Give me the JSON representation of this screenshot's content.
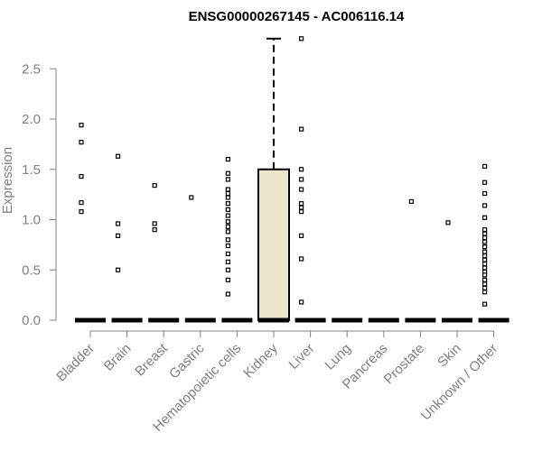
{
  "chart_data": {
    "type": "box",
    "title": "ENSG00000267145 - AC006116.14",
    "xlabel": "",
    "ylabel": "Expression",
    "ylim": [
      0,
      2.8
    ],
    "yticks": [
      "0.0",
      "0.5",
      "1.0",
      "1.5",
      "2.0",
      "2.5"
    ],
    "grid": false,
    "categories": [
      "Bladder",
      "Brain",
      "Breast",
      "Gastric",
      "Hematopoietic cells",
      "Kidney",
      "Liver",
      "Lung",
      "Pancreas",
      "Prostate",
      "Skin",
      "Unknown / Other"
    ],
    "box_color": "#ede6cc",
    "boxes": [
      {
        "category": "Bladder",
        "q1": 0,
        "median": 0,
        "q3": 0,
        "whisker_low": 0,
        "whisker_high": 0
      },
      {
        "category": "Brain",
        "q1": 0,
        "median": 0,
        "q3": 0,
        "whisker_low": 0,
        "whisker_high": 0
      },
      {
        "category": "Breast",
        "q1": 0,
        "median": 0,
        "q3": 0,
        "whisker_low": 0,
        "whisker_high": 0
      },
      {
        "category": "Gastric",
        "q1": 0,
        "median": 0,
        "q3": 0,
        "whisker_low": 0,
        "whisker_high": 0
      },
      {
        "category": "Hematopoietic cells",
        "q1": 0,
        "median": 0,
        "q3": 0,
        "whisker_low": 0,
        "whisker_high": 0
      },
      {
        "category": "Kidney",
        "q1": 0,
        "median": 0,
        "q3": 1.5,
        "whisker_low": 0,
        "whisker_high": 2.8
      },
      {
        "category": "Liver",
        "q1": 0,
        "median": 0,
        "q3": 0,
        "whisker_low": 0,
        "whisker_high": 0
      },
      {
        "category": "Lung",
        "q1": 0,
        "median": 0,
        "q3": 0,
        "whisker_low": 0,
        "whisker_high": 0
      },
      {
        "category": "Pancreas",
        "q1": 0,
        "median": 0,
        "q3": 0,
        "whisker_low": 0,
        "whisker_high": 0
      },
      {
        "category": "Prostate",
        "q1": 0,
        "median": 0,
        "q3": 0,
        "whisker_low": 0,
        "whisker_high": 0
      },
      {
        "category": "Skin",
        "q1": 0,
        "median": 0,
        "q3": 0,
        "whisker_low": 0,
        "whisker_high": 0
      },
      {
        "category": "Unknown / Other",
        "q1": 0,
        "median": 0,
        "q3": 0,
        "whisker_low": 0,
        "whisker_high": 0
      }
    ],
    "outliers": [
      [
        1.94,
        1.77,
        1.43,
        1.17,
        1.08
      ],
      [
        1.63,
        0.96,
        0.84,
        0.5
      ],
      [
        1.34,
        0.96,
        0.9
      ],
      [
        1.22
      ],
      [
        1.6,
        1.46,
        1.4,
        1.3,
        1.26,
        1.22,
        1.16,
        1.1,
        1.04,
        0.98,
        0.93,
        0.88,
        0.8,
        0.74,
        0.66,
        0.58,
        0.5,
        0.4,
        0.26
      ],
      [],
      [
        2.8,
        1.9,
        1.5,
        1.4,
        1.3,
        1.16,
        1.12,
        1.08,
        0.84,
        0.61,
        0.18
      ],
      [],
      [],
      [
        1.18
      ],
      [
        0.97
      ],
      [
        1.53,
        1.37,
        1.26,
        1.14,
        1.02,
        0.9,
        0.86,
        0.82,
        0.78,
        0.73,
        0.68,
        0.64,
        0.6,
        0.56,
        0.52,
        0.48,
        0.45,
        0.4,
        0.36,
        0.32,
        0.28,
        0.16
      ]
    ]
  }
}
